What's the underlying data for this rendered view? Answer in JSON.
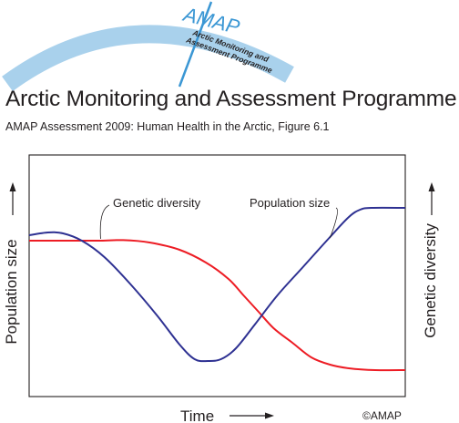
{
  "header": {
    "logo_name": "AMAP",
    "logo_subtitle": [
      "Arctic Monitoring and",
      "Assessment Programme"
    ],
    "title": "Arctic Monitoring and Assessment Programme",
    "caption": "AMAP Assessment 2009: Human Health in the Arctic, Figure 6.1",
    "arc_color": "#a9d1ec",
    "brand_color": "#3b97d4"
  },
  "chart_data": {
    "type": "line",
    "xlabel": "Time",
    "ylabel_left": "Population size",
    "ylabel_right": "Genetic diversity",
    "copyright": "©AMAP",
    "xlim": [
      0,
      100
    ],
    "ylim": [
      0,
      100
    ],
    "grid": false,
    "ticks": "none",
    "series": [
      {
        "name": "Population size",
        "color": "#2e3192",
        "x": [
          0,
          5,
          9,
          14,
          20,
          27,
          34,
          40,
          44,
          47.5,
          51,
          55,
          60,
          66,
          73,
          80,
          85,
          88,
          91,
          100
        ],
        "y": [
          77,
          78.5,
          78,
          74,
          65,
          50,
          33,
          17,
          9,
          8,
          9,
          15,
          28,
          44,
          60,
          76,
          87,
          91,
          92,
          92
        ]
      },
      {
        "name": "Genetic diversity",
        "color": "#ed1c24",
        "x": [
          0,
          10,
          19,
          25,
          32,
          40,
          47,
          53,
          57,
          61,
          65,
          70,
          75,
          80,
          85,
          92,
          100
        ],
        "y": [
          74,
          74,
          74,
          74.3,
          73,
          69,
          62,
          53,
          44,
          35,
          26,
          18,
          10,
          6,
          4,
          3,
          3
        ]
      }
    ],
    "annotations": [
      {
        "text": "Genetic diversity",
        "target_series": "Genetic diversity",
        "at_x": 19
      },
      {
        "text": "Population size",
        "target_series": "Population size",
        "at_x": 80
      }
    ]
  }
}
